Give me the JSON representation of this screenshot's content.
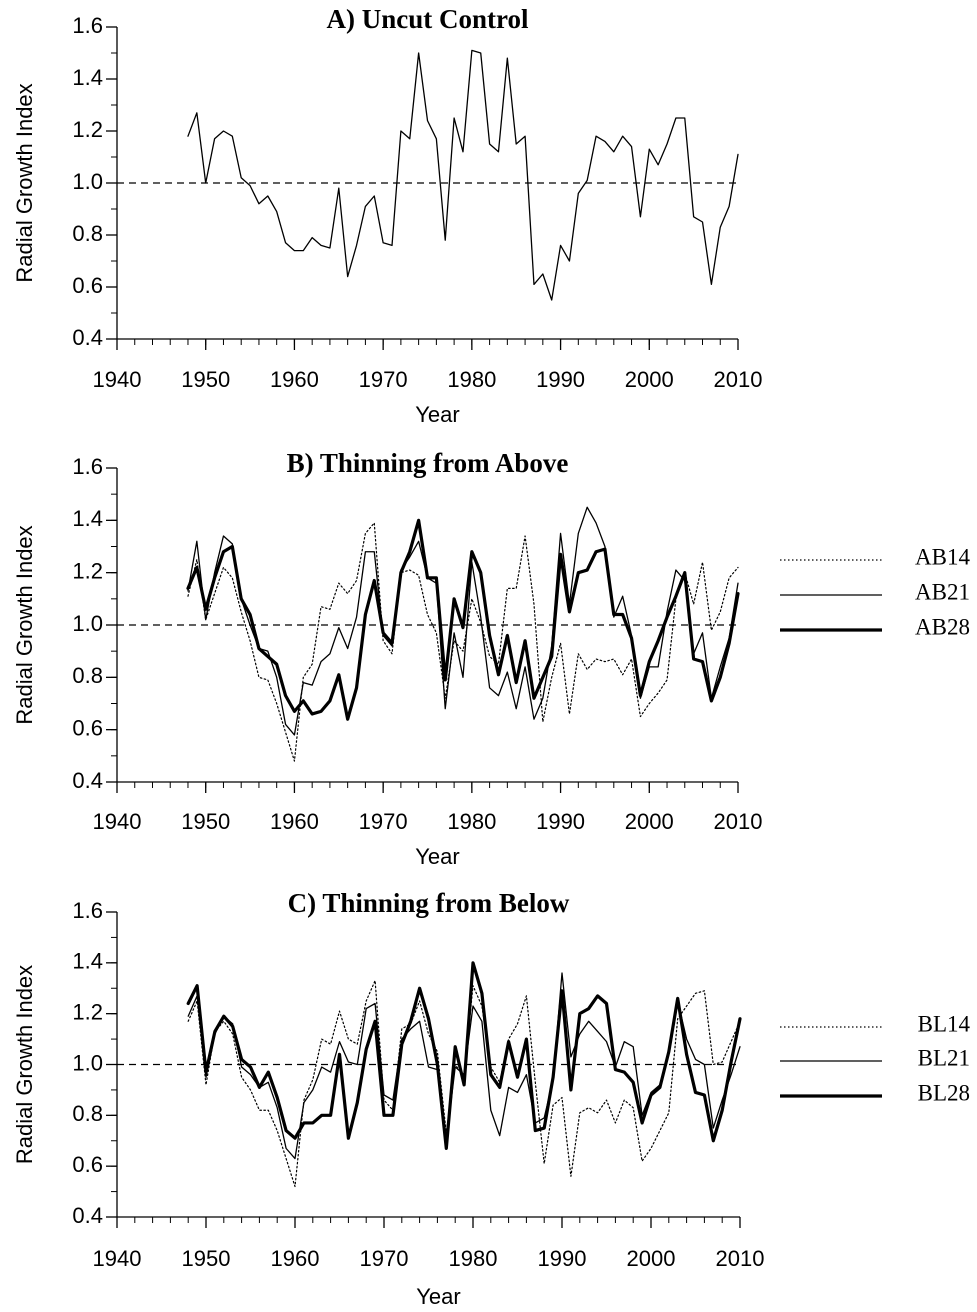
{
  "chart_data": [
    {
      "type": "line",
      "title": "A) Uncut Control",
      "xlabel": "Year",
      "ylabel": "Radial Growth Index",
      "x": [
        1948,
        1949,
        1950,
        1951,
        1952,
        1953,
        1954,
        1955,
        1956,
        1957,
        1958,
        1959,
        1960,
        1961,
        1962,
        1963,
        1964,
        1965,
        1966,
        1967,
        1968,
        1969,
        1970,
        1971,
        1972,
        1973,
        1974,
        1975,
        1976,
        1977,
        1978,
        1979,
        1980,
        1981,
        1982,
        1983,
        1984,
        1985,
        1986,
        1987,
        1988,
        1989,
        1990,
        1991,
        1992,
        1993,
        1994,
        1995,
        1996,
        1997,
        1998,
        1999,
        2000,
        2001,
        2002,
        2003,
        2004,
        2005,
        2006,
        2007,
        2008,
        2009,
        2010
      ],
      "series": [
        {
          "color": "#000000",
          "width": 1.3,
          "dash": "solid",
          "values": [
            1.18,
            1.27,
            1.0,
            1.17,
            1.2,
            1.18,
            1.02,
            0.99,
            0.92,
            0.95,
            0.89,
            0.77,
            0.74,
            0.74,
            0.79,
            0.76,
            0.75,
            0.98,
            0.64,
            0.76,
            0.91,
            0.95,
            0.77,
            0.76,
            1.2,
            1.17,
            1.5,
            1.24,
            1.17,
            0.78,
            1.25,
            1.12,
            1.51,
            1.5,
            1.15,
            1.12,
            1.48,
            1.15,
            1.18,
            0.61,
            0.65,
            0.55,
            0.76,
            0.7,
            0.96,
            1.01,
            1.18,
            1.16,
            1.12,
            1.18,
            1.14,
            0.87,
            1.13,
            1.07,
            1.15,
            1.25,
            1.25,
            0.87,
            0.85,
            0.61,
            0.83,
            0.91,
            1.11
          ]
        }
      ],
      "xlim": [
        1940,
        2010
      ],
      "ylim": [
        0.4,
        1.6
      ],
      "xticks": [
        1940,
        1950,
        1960,
        1970,
        1980,
        1990,
        2000,
        2010
      ],
      "yticks": [
        0.4,
        0.6,
        0.8,
        {
          "value": 1,
          "label": "1.0"
        },
        1.2,
        1.4,
        1.6
      ],
      "xminor": 2,
      "yminor": 0.1,
      "reference_line": 1
    },
    {
      "type": "line",
      "title": "B) Thinning from Above",
      "xlabel": "Year",
      "ylabel": "Radial Growth Index",
      "x": [
        1948,
        1949,
        1950,
        1951,
        1952,
        1953,
        1954,
        1955,
        1956,
        1957,
        1958,
        1959,
        1960,
        1961,
        1962,
        1963,
        1964,
        1965,
        1966,
        1967,
        1968,
        1969,
        1970,
        1971,
        1972,
        1973,
        1974,
        1975,
        1976,
        1977,
        1978,
        1979,
        1980,
        1981,
        1982,
        1983,
        1984,
        1985,
        1986,
        1987,
        1988,
        1989,
        1990,
        1991,
        1992,
        1993,
        1994,
        1995,
        1996,
        1997,
        1998,
        1999,
        2000,
        2001,
        2002,
        2003,
        2004,
        2005,
        2006,
        2007,
        2008,
        2009,
        2010
      ],
      "series": [
        {
          "name": "AB14",
          "color": "#000000",
          "width": 1.2,
          "dash": "dotted",
          "values": [
            1.11,
            1.25,
            1.02,
            1.12,
            1.22,
            1.18,
            1.05,
            0.94,
            0.8,
            0.79,
            0.7,
            0.59,
            0.48,
            0.8,
            0.85,
            1.07,
            1.06,
            1.16,
            1.12,
            1.17,
            1.35,
            1.39,
            0.94,
            0.89,
            1.2,
            1.21,
            1.19,
            1.04,
            0.97,
            0.72,
            0.94,
            0.9,
            1.1,
            1.01,
            0.88,
            0.85,
            1.14,
            1.14,
            1.34,
            1.08,
            0.63,
            0.8,
            0.93,
            0.66,
            0.89,
            0.83,
            0.87,
            0.86,
            0.87,
            0.81,
            0.87,
            0.65,
            0.7,
            0.74,
            0.79,
            1.1,
            1.2,
            1.08,
            1.24,
            0.98,
            1.05,
            1.18,
            1.22
          ]
        },
        {
          "name": "AB21",
          "color": "#000000",
          "width": 1.3,
          "dash": "solid",
          "values": [
            1.13,
            1.32,
            1.02,
            1.2,
            1.34,
            1.31,
            1.1,
            1.0,
            0.91,
            0.9,
            0.8,
            0.62,
            0.58,
            0.78,
            0.77,
            0.86,
            0.89,
            0.99,
            0.91,
            1.03,
            1.28,
            1.28,
            0.96,
            0.92,
            1.21,
            1.26,
            1.32,
            1.18,
            1.16,
            0.68,
            0.97,
            0.8,
            1.24,
            1.03,
            0.76,
            0.73,
            0.82,
            0.68,
            0.84,
            0.64,
            0.72,
            0.92,
            1.35,
            1.08,
            1.35,
            1.45,
            1.39,
            1.3,
            1.03,
            1.11,
            0.96,
            0.72,
            0.84,
            0.84,
            1.05,
            1.21,
            1.17,
            0.89,
            0.97,
            0.72,
            0.84,
            0.95,
            1.16
          ]
        },
        {
          "name": "AB28",
          "color": "#000000",
          "width": 3.2,
          "dash": "solid",
          "values": [
            1.14,
            1.22,
            1.06,
            1.18,
            1.28,
            1.3,
            1.1,
            1.04,
            0.91,
            0.88,
            0.85,
            0.73,
            0.67,
            0.71,
            0.66,
            0.67,
            0.71,
            0.81,
            0.64,
            0.76,
            1.04,
            1.17,
            0.97,
            0.93,
            1.2,
            1.28,
            1.4,
            1.18,
            1.18,
            0.79,
            1.1,
            0.99,
            1.28,
            1.2,
            0.96,
            0.81,
            0.96,
            0.78,
            0.94,
            0.72,
            0.8,
            0.88,
            1.27,
            1.05,
            1.2,
            1.21,
            1.28,
            1.29,
            1.04,
            1.04,
            0.95,
            0.73,
            0.86,
            0.94,
            1.03,
            1.11,
            1.2,
            0.87,
            0.86,
            0.71,
            0.8,
            0.93,
            1.12
          ]
        }
      ],
      "xlim": [
        1940,
        2010
      ],
      "ylim": [
        0.4,
        1.6
      ],
      "xticks": [
        1940,
        1950,
        1960,
        1970,
        1980,
        1990,
        2000,
        2010
      ],
      "yticks": [
        0.4,
        0.6,
        0.8,
        {
          "value": 1,
          "label": "1.0"
        },
        1.2,
        1.4,
        1.6
      ],
      "xminor": 2,
      "yminor": 0.1,
      "reference_line": 1,
      "legend": "right"
    },
    {
      "type": "line",
      "title": "C) Thinning from Below",
      "xlabel": "Year",
      "ylabel": "Radial Growth Index",
      "x": [
        1948,
        1949,
        1950,
        1951,
        1952,
        1953,
        1954,
        1955,
        1956,
        1957,
        1958,
        1959,
        1960,
        1961,
        1962,
        1963,
        1964,
        1965,
        1966,
        1967,
        1968,
        1969,
        1970,
        1971,
        1972,
        1973,
        1974,
        1975,
        1976,
        1977,
        1978,
        1979,
        1980,
        1981,
        1982,
        1983,
        1984,
        1985,
        1986,
        1987,
        1988,
        1989,
        1990,
        1991,
        1992,
        1993,
        1994,
        1995,
        1996,
        1997,
        1998,
        1999,
        2000,
        2001,
        2002,
        2003,
        2004,
        2005,
        2006,
        2007,
        2008,
        2009,
        2010
      ],
      "series": [
        {
          "name": "BL14",
          "color": "#000000",
          "width": 1.2,
          "dash": "dotted",
          "values": [
            1.17,
            1.25,
            0.92,
            1.13,
            1.17,
            1.12,
            0.95,
            0.9,
            0.82,
            0.82,
            0.74,
            0.63,
            0.52,
            0.86,
            0.94,
            1.1,
            1.08,
            1.21,
            1.1,
            1.08,
            1.25,
            1.33,
            0.86,
            0.82,
            1.14,
            1.16,
            1.25,
            1.12,
            1.05,
            0.73,
            1.0,
            0.95,
            1.31,
            1.23,
            0.99,
            0.93,
            1.1,
            1.16,
            1.27,
            0.93,
            0.61,
            0.84,
            0.87,
            0.56,
            0.81,
            0.83,
            0.81,
            0.86,
            0.77,
            0.86,
            0.83,
            0.62,
            0.67,
            0.74,
            0.81,
            1.18,
            1.23,
            1.28,
            1.29,
            1.0,
            1.01,
            1.09,
            1.17
          ]
        },
        {
          "name": "BL21",
          "color": "#000000",
          "width": 1.3,
          "dash": "solid",
          "values": [
            1.19,
            1.27,
            0.95,
            1.12,
            1.19,
            1.16,
            0.99,
            0.96,
            0.91,
            0.93,
            0.83,
            0.67,
            0.63,
            0.85,
            0.9,
            0.99,
            0.97,
            1.09,
            1.01,
            1.0,
            1.22,
            1.24,
            0.88,
            0.86,
            1.1,
            1.14,
            1.17,
            0.99,
            0.98,
            0.7,
            0.99,
            0.96,
            1.23,
            1.17,
            0.82,
            0.72,
            0.91,
            0.89,
            0.96,
            0.77,
            0.79,
            0.94,
            1.36,
            1.03,
            1.12,
            1.17,
            1.13,
            1.09,
            0.99,
            1.09,
            1.07,
            0.8,
            0.89,
            0.92,
            1.06,
            1.25,
            1.1,
            1.02,
            1.0,
            0.75,
            0.86,
            0.96,
            1.07
          ]
        },
        {
          "name": "BL28",
          "color": "#000000",
          "width": 3.2,
          "dash": "solid",
          "values": [
            1.24,
            1.31,
            0.97,
            1.13,
            1.19,
            1.15,
            1.02,
            0.99,
            0.91,
            0.97,
            0.87,
            0.74,
            0.71,
            0.77,
            0.77,
            0.8,
            0.8,
            1.04,
            0.71,
            0.85,
            1.06,
            1.17,
            0.8,
            0.8,
            1.08,
            1.17,
            1.3,
            1.18,
            1.0,
            0.67,
            1.07,
            0.92,
            1.4,
            1.28,
            0.96,
            0.91,
            1.09,
            0.95,
            1.1,
            0.74,
            0.75,
            0.95,
            1.29,
            0.9,
            1.2,
            1.22,
            1.27,
            1.24,
            0.98,
            0.97,
            0.93,
            0.77,
            0.88,
            0.91,
            1.05,
            1.26,
            1.04,
            0.89,
            0.88,
            0.7,
            0.82,
            1.01,
            1.18
          ]
        }
      ],
      "xlim": [
        1940,
        2010
      ],
      "ylim": [
        0.4,
        1.6
      ],
      "xticks": [
        1940,
        1950,
        1960,
        1970,
        1980,
        1990,
        2000,
        2010
      ],
      "yticks": [
        0.4,
        0.6,
        0.8,
        {
          "value": 1,
          "label": "1.0"
        },
        1.2,
        1.4,
        1.6
      ],
      "xminor": 2,
      "yminor": 0.1,
      "reference_line": 1,
      "legend": "right"
    }
  ]
}
